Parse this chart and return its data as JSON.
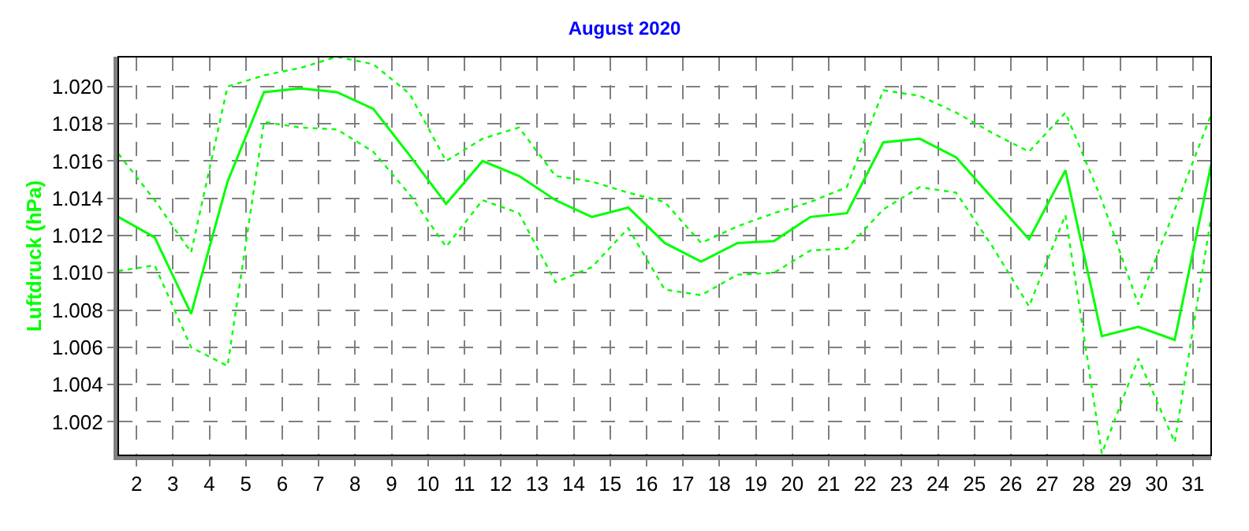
{
  "chart_data": {
    "type": "line",
    "title": "August 2020",
    "ylabel": "Luftdruck (hPa)",
    "x": [
      1.5,
      2.5,
      3.5,
      4.5,
      5.5,
      6.5,
      7.5,
      8.5,
      9.5,
      10.5,
      11.5,
      12.5,
      13.5,
      14.5,
      15.5,
      16.5,
      17.5,
      18.5,
      19.5,
      20.5,
      21.5,
      22.5,
      23.5,
      24.5,
      25.5,
      26.5,
      27.5,
      28.5,
      29.5,
      30.5,
      31.5
    ],
    "series": [
      {
        "color": "#00ff00",
        "line_style": "dotted",
        "values": [
          1.0164,
          1.0139,
          1.0111,
          1.02,
          1.0206,
          1.021,
          1.0216,
          1.0212,
          1.0196,
          1.016,
          1.0172,
          1.0178,
          1.0152,
          1.0149,
          1.0143,
          1.0138,
          1.0116,
          1.0125,
          1.0132,
          1.0138,
          1.0146,
          1.0198,
          1.0195,
          1.0186,
          1.0175,
          1.0165,
          1.0186,
          1.0139,
          1.0083,
          1.0134,
          1.0185
        ]
      },
      {
        "color": "#00ff00",
        "line_style": "solid",
        "values": [
          1.013,
          1.0119,
          1.0078,
          1.0149,
          1.0197,
          1.0199,
          1.0197,
          1.0188,
          1.0163,
          1.0137,
          1.016,
          1.0152,
          1.0139,
          1.013,
          1.0135,
          1.0116,
          1.0106,
          1.0116,
          1.0117,
          1.013,
          1.0132,
          1.017,
          1.0172,
          1.0162,
          1.014,
          1.0118,
          1.0155,
          1.0066,
          1.0071,
          1.0064,
          1.0158
        ]
      },
      {
        "color": "#00ff00",
        "line_style": "dotted",
        "values": [
          1.0101,
          1.0104,
          1.006,
          1.005,
          1.0181,
          1.0178,
          1.0177,
          1.0165,
          1.0142,
          1.0114,
          1.0139,
          1.0132,
          1.0095,
          1.0103,
          1.0124,
          1.0091,
          1.0088,
          1.0099,
          1.01,
          1.0112,
          1.0113,
          1.0134,
          1.0146,
          1.0143,
          1.0114,
          1.0082,
          1.0131,
          1.0003,
          1.0054,
          1.0009,
          1.013
        ]
      }
    ],
    "xlim": [
      1.5,
      31.5
    ],
    "xticks": [
      2,
      3,
      4,
      5,
      6,
      7,
      8,
      9,
      10,
      11,
      12,
      13,
      14,
      15,
      16,
      17,
      18,
      19,
      20,
      21,
      22,
      23,
      24,
      25,
      26,
      27,
      28,
      29,
      30,
      31
    ],
    "ylim": [
      1.0002,
      1.0216
    ],
    "yticks": [
      {
        "value": 1.002,
        "label": "1.002"
      },
      {
        "value": 1.004,
        "label": "1.004"
      },
      {
        "value": 1.006,
        "label": "1.006"
      },
      {
        "value": 1.008,
        "label": "1.008"
      },
      {
        "value": 1.01,
        "label": "1.010"
      },
      {
        "value": 1.012,
        "label": "1.012"
      },
      {
        "value": 1.014,
        "label": "1.014"
      },
      {
        "value": 1.016,
        "label": "1.016"
      },
      {
        "value": 1.018,
        "label": "1.018"
      },
      {
        "value": 1.02,
        "label": "1.020"
      }
    ],
    "grid": true,
    "marker": "none"
  }
}
